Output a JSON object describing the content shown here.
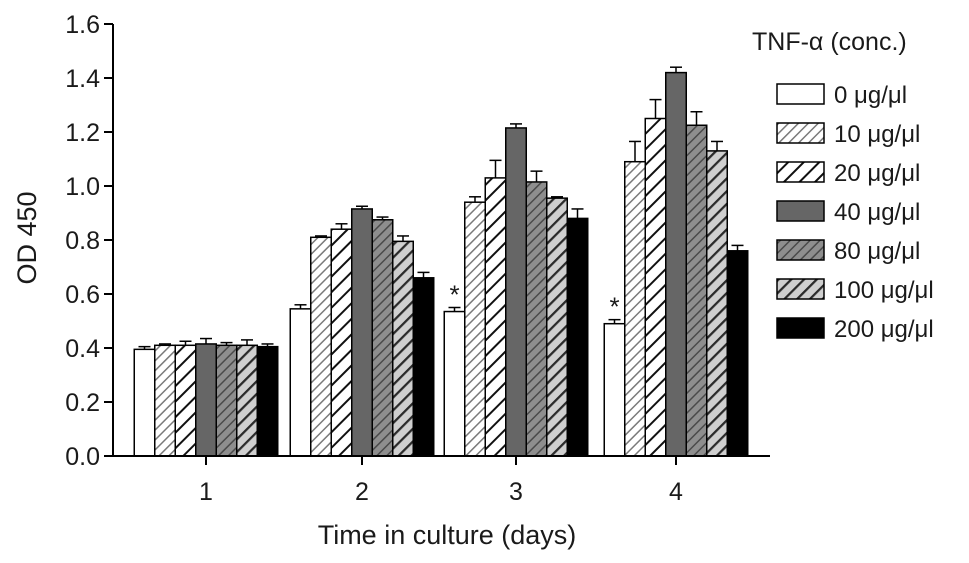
{
  "chart_data": {
    "type": "bar",
    "xlabel": "Time in culture (days)",
    "ylabel": "OD 450",
    "ylim": [
      0.0,
      1.6
    ],
    "yticks": [
      "0.0",
      "0.2",
      "0.4",
      "0.6",
      "0.8",
      "1.0",
      "1.2",
      "1.4",
      "1.6"
    ],
    "categories": [
      "1",
      "2",
      "3",
      "4"
    ],
    "legend": {
      "title": "TNF-α (conc.)",
      "placement": "right"
    },
    "series": [
      {
        "name": "0 μg/μl",
        "pattern": "white",
        "values": [
          0.395,
          0.545,
          0.535,
          0.49
        ],
        "errors": [
          0.01,
          0.015,
          0.015,
          0.015
        ]
      },
      {
        "name": "10 μg/μl",
        "pattern": "hatch-fine",
        "values": [
          0.41,
          0.81,
          0.94,
          1.09
        ],
        "errors": [
          0.005,
          0.005,
          0.02,
          0.075
        ]
      },
      {
        "name": "20 μg/μl",
        "pattern": "hatch-bold",
        "values": [
          0.41,
          0.84,
          1.03,
          1.25
        ],
        "errors": [
          0.015,
          0.02,
          0.065,
          0.07
        ]
      },
      {
        "name": "40 μg/μl",
        "pattern": "dark-gray",
        "values": [
          0.415,
          0.915,
          1.215,
          1.42
        ],
        "errors": [
          0.02,
          0.01,
          0.015,
          0.02
        ]
      },
      {
        "name": "80 μg/μl",
        "pattern": "hatch-gray",
        "values": [
          0.41,
          0.875,
          1.015,
          1.225
        ],
        "errors": [
          0.01,
          0.01,
          0.04,
          0.05
        ]
      },
      {
        "name": "100 μg/μl",
        "pattern": "hatch-heavy",
        "values": [
          0.41,
          0.795,
          0.955,
          1.13
        ],
        "errors": [
          0.02,
          0.02,
          0.005,
          0.035
        ]
      },
      {
        "name": "200 μg/μl",
        "pattern": "black",
        "values": [
          0.405,
          0.66,
          0.88,
          0.76
        ],
        "errors": [
          0.01,
          0.02,
          0.035,
          0.02
        ]
      }
    ],
    "annotations": [
      {
        "text": "*",
        "category": "3",
        "series": "0 μg/μl"
      },
      {
        "text": "*",
        "category": "4",
        "series": "0 μg/μl"
      }
    ],
    "grid": false
  }
}
